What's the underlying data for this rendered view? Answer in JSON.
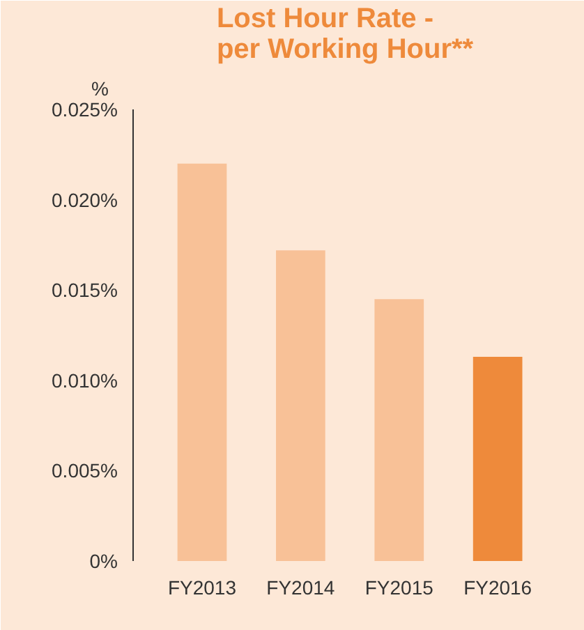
{
  "chart_data": {
    "type": "bar",
    "title": "Lost Hour Rate - per Working Hour**",
    "ylabel": "%",
    "categories": [
      "FY2013",
      "FY2014",
      "FY2015",
      "FY2016"
    ],
    "values": [
      0.022,
      0.0172,
      0.0145,
      0.0113
    ],
    "colors": [
      "#f8c197",
      "#f8c197",
      "#f8c197",
      "#ee8a3b"
    ],
    "ylim": [
      0,
      0.025
    ],
    "yticks": [
      {
        "value": 0,
        "label": "0%"
      },
      {
        "value": 0.005,
        "label": "0.005%"
      },
      {
        "value": 0.01,
        "label": "0.010%"
      },
      {
        "value": 0.015,
        "label": "0.015%"
      },
      {
        "value": 0.02,
        "label": "0.020%"
      },
      {
        "value": 0.025,
        "label": "0.025%"
      }
    ],
    "grid": false
  }
}
